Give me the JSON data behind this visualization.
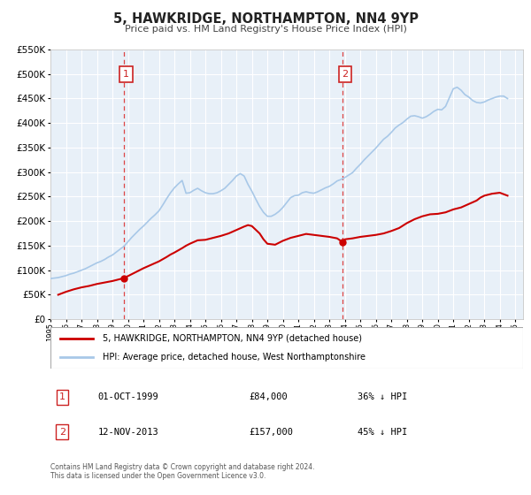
{
  "title": "5, HAWKRIDGE, NORTHAMPTON, NN4 9YP",
  "subtitle": "Price paid vs. HM Land Registry's House Price Index (HPI)",
  "background_color": "#ffffff",
  "plot_bg_color": "#e8f0f8",
  "grid_color": "#ffffff",
  "ylim": [
    0,
    550000
  ],
  "yticks": [
    0,
    50000,
    100000,
    150000,
    200000,
    250000,
    300000,
    350000,
    400000,
    450000,
    500000,
    550000
  ],
  "xlim_start": 1995.0,
  "xlim_end": 2025.5,
  "xtick_years": [
    1995,
    1996,
    1997,
    1998,
    1999,
    2000,
    2001,
    2002,
    2003,
    2004,
    2005,
    2006,
    2007,
    2008,
    2009,
    2010,
    2011,
    2012,
    2013,
    2014,
    2015,
    2016,
    2017,
    2018,
    2019,
    2020,
    2021,
    2022,
    2023,
    2024,
    2025
  ],
  "hpi_color": "#a8c8e8",
  "price_color": "#cc0000",
  "marker_color": "#cc0000",
  "vline_color": "#dd4444",
  "annotation_box_color": "#cc2222",
  "sale1_x": 1999.75,
  "sale1_y": 84000,
  "sale2_x": 2013.87,
  "sale2_y": 157000,
  "legend_line1": "5, HAWKRIDGE, NORTHAMPTON, NN4 9YP (detached house)",
  "legend_line2": "HPI: Average price, detached house, West Northamptonshire",
  "table_row1_num": "1",
  "table_row1_date": "01-OCT-1999",
  "table_row1_price": "£84,000",
  "table_row1_hpi": "36% ↓ HPI",
  "table_row2_num": "2",
  "table_row2_date": "12-NOV-2013",
  "table_row2_price": "£157,000",
  "table_row2_hpi": "45% ↓ HPI",
  "footer": "Contains HM Land Registry data © Crown copyright and database right 2024.\nThis data is licensed under the Open Government Licence v3.0.",
  "hpi_data_x": [
    1995.0,
    1995.25,
    1995.5,
    1995.75,
    1996.0,
    1996.25,
    1996.5,
    1996.75,
    1997.0,
    1997.25,
    1997.5,
    1997.75,
    1998.0,
    1998.25,
    1998.5,
    1998.75,
    1999.0,
    1999.25,
    1999.5,
    1999.75,
    2000.0,
    2000.25,
    2000.5,
    2000.75,
    2001.0,
    2001.25,
    2001.5,
    2001.75,
    2002.0,
    2002.25,
    2002.5,
    2002.75,
    2003.0,
    2003.25,
    2003.5,
    2003.75,
    2004.0,
    2004.25,
    2004.5,
    2004.75,
    2005.0,
    2005.25,
    2005.5,
    2005.75,
    2006.0,
    2006.25,
    2006.5,
    2006.75,
    2007.0,
    2007.25,
    2007.5,
    2007.75,
    2008.0,
    2008.25,
    2008.5,
    2008.75,
    2009.0,
    2009.25,
    2009.5,
    2009.75,
    2010.0,
    2010.25,
    2010.5,
    2010.75,
    2011.0,
    2011.25,
    2011.5,
    2011.75,
    2012.0,
    2012.25,
    2012.5,
    2012.75,
    2013.0,
    2013.25,
    2013.5,
    2013.75,
    2014.0,
    2014.25,
    2014.5,
    2014.75,
    2015.0,
    2015.25,
    2015.5,
    2015.75,
    2016.0,
    2016.25,
    2016.5,
    2016.75,
    2017.0,
    2017.25,
    2017.5,
    2017.75,
    2018.0,
    2018.25,
    2018.5,
    2018.75,
    2019.0,
    2019.25,
    2019.5,
    2019.75,
    2020.0,
    2020.25,
    2020.5,
    2020.75,
    2021.0,
    2021.25,
    2021.5,
    2021.75,
    2022.0,
    2022.25,
    2022.5,
    2022.75,
    2023.0,
    2023.25,
    2023.5,
    2023.75,
    2024.0,
    2024.25,
    2024.5
  ],
  "hpi_data_y": [
    83000,
    84000,
    85000,
    87000,
    89000,
    92000,
    94000,
    97000,
    100000,
    103000,
    107000,
    111000,
    115000,
    118000,
    122000,
    127000,
    131000,
    137000,
    143000,
    149000,
    158000,
    167000,
    175000,
    183000,
    190000,
    198000,
    206000,
    213000,
    221000,
    233000,
    246000,
    258000,
    268000,
    276000,
    283000,
    257000,
    258000,
    263000,
    267000,
    262000,
    258000,
    256000,
    256000,
    258000,
    262000,
    267000,
    275000,
    283000,
    292000,
    297000,
    292000,
    275000,
    261000,
    245000,
    230000,
    218000,
    210000,
    210000,
    214000,
    220000,
    228000,
    238000,
    248000,
    252000,
    253000,
    258000,
    260000,
    258000,
    257000,
    260000,
    264000,
    268000,
    271000,
    276000,
    282000,
    285000,
    289000,
    294000,
    299000,
    308000,
    316000,
    325000,
    333000,
    341000,
    349000,
    358000,
    367000,
    373000,
    381000,
    390000,
    396000,
    401000,
    408000,
    414000,
    415000,
    413000,
    410000,
    413000,
    418000,
    424000,
    428000,
    427000,
    434000,
    452000,
    470000,
    473000,
    467000,
    458000,
    453000,
    446000,
    442000,
    441000,
    443000,
    447000,
    450000,
    453000,
    455000,
    455000,
    450000
  ],
  "price_data_x": [
    1995.5,
    1996.0,
    1996.5,
    1997.0,
    1997.5,
    1997.75,
    1998.0,
    1998.5,
    1999.0,
    1999.75,
    2000.5,
    2001.0,
    2001.5,
    2002.0,
    2002.5,
    2002.75,
    2003.0,
    2003.5,
    2003.75,
    2004.0,
    2004.5,
    2005.0,
    2005.5,
    2006.0,
    2006.5,
    2007.0,
    2007.5,
    2007.75,
    2008.0,
    2008.5,
    2008.75,
    2009.0,
    2009.5,
    2010.0,
    2010.5,
    2011.0,
    2011.5,
    2012.0,
    2012.5,
    2013.0,
    2013.5,
    2013.87,
    2014.0,
    2014.5,
    2015.0,
    2015.5,
    2016.0,
    2016.5,
    2017.0,
    2017.5,
    2018.0,
    2018.5,
    2019.0,
    2019.5,
    2020.0,
    2020.5,
    2021.0,
    2021.5,
    2022.0,
    2022.5,
    2022.75,
    2023.0,
    2023.5,
    2024.0,
    2024.25,
    2024.5
  ],
  "price_data_y": [
    50000,
    56000,
    61000,
    65000,
    68000,
    70000,
    72000,
    75000,
    78000,
    84000,
    96000,
    104000,
    111000,
    118000,
    127000,
    132000,
    136000,
    145000,
    150000,
    154000,
    161000,
    162000,
    166000,
    170000,
    175000,
    182000,
    189000,
    192000,
    190000,
    175000,
    163000,
    154000,
    152000,
    160000,
    166000,
    170000,
    174000,
    172000,
    170000,
    168000,
    165000,
    157000,
    163000,
    165000,
    168000,
    170000,
    172000,
    175000,
    180000,
    186000,
    196000,
    204000,
    210000,
    214000,
    215000,
    218000,
    224000,
    228000,
    235000,
    242000,
    248000,
    252000,
    256000,
    258000,
    255000,
    252000
  ]
}
